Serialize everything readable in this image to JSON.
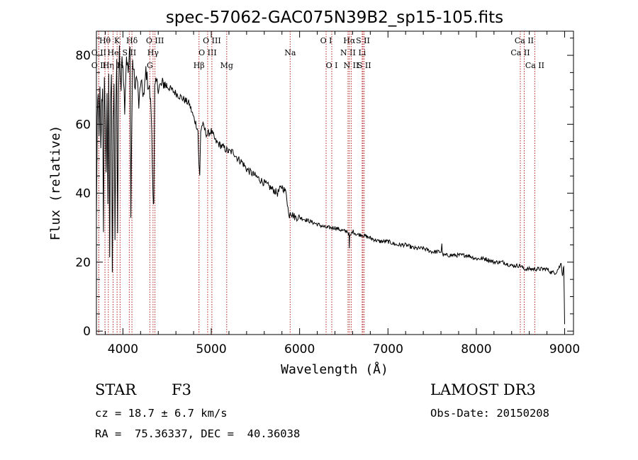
{
  "chart_data": {
    "type": "line",
    "title": "spec-57062-GAC075N39B2_sp15-105.fits",
    "xlabel": "Wavelength (Å)",
    "ylabel": "Flux (relative)",
    "xlim": [
      3700,
      9100
    ],
    "ylim": [
      -1,
      87
    ],
    "xticks": [
      4000,
      5000,
      6000,
      7000,
      8000,
      9000
    ],
    "yticks": [
      0,
      20,
      40,
      60,
      80
    ],
    "series": [
      {
        "name": "spectrum",
        "x": [
          3700,
          3710,
          3720,
          3730,
          3740,
          3750,
          3760,
          3770,
          3780,
          3790,
          3800,
          3810,
          3820,
          3830,
          3840,
          3850,
          3860,
          3870,
          3880,
          3890,
          3900,
          3910,
          3920,
          3930,
          3940,
          3950,
          3960,
          3970,
          3980,
          3990,
          4000,
          4020,
          4040,
          4060,
          4080,
          4090,
          4100,
          4110,
          4120,
          4140,
          4160,
          4180,
          4200,
          4220,
          4240,
          4260,
          4280,
          4300,
          4320,
          4340,
          4350,
          4360,
          4380,
          4400,
          4430,
          4460,
          4500,
          4550,
          4600,
          4650,
          4700,
          4750,
          4800,
          4830,
          4850,
          4860,
          4870,
          4880,
          4900,
          4950,
          5000,
          5050,
          5100,
          5150,
          5200,
          5250,
          5300,
          5350,
          5400,
          5450,
          5500,
          5550,
          5600,
          5650,
          5700,
          5750,
          5800,
          5850,
          5880,
          5895,
          5910,
          5950,
          6000,
          6100,
          6200,
          6300,
          6400,
          6500,
          6540,
          6560,
          6563,
          6566,
          6580,
          6600,
          6650,
          6700,
          6800,
          6900,
          7000,
          7100,
          7200,
          7300,
          7400,
          7500,
          7600,
          7610,
          7620,
          7700,
          7800,
          7900,
          8000,
          8100,
          8200,
          8300,
          8400,
          8500,
          8540,
          8600,
          8660,
          8700,
          8800,
          8850,
          8900,
          8950,
          8960,
          8975,
          8990,
          9000
        ],
        "values": [
          32,
          62,
          68,
          58,
          70,
          52,
          66,
          70,
          30,
          72,
          62,
          45,
          70,
          35,
          75,
          20,
          68,
          75,
          15,
          60,
          72,
          25,
          62,
          78,
          28,
          68,
          82,
          75,
          70,
          80,
          78,
          65,
          80,
          75,
          82,
          35,
          60,
          78,
          76,
          70,
          75,
          65,
          72,
          70,
          68,
          76,
          72,
          70,
          64,
          40,
          38,
          70,
          72,
          71,
          71,
          72,
          71,
          70,
          69,
          68,
          67,
          66,
          62,
          60,
          58,
          48,
          45,
          58,
          60,
          57,
          58,
          55,
          54,
          53,
          52,
          52,
          50,
          49,
          47,
          46,
          45,
          44,
          43,
          42,
          41,
          40,
          42,
          40,
          33,
          35,
          34,
          33,
          33,
          32,
          31,
          30,
          30,
          29,
          29,
          28,
          24,
          27,
          28,
          29,
          28,
          28,
          27,
          26,
          26,
          25,
          25,
          24,
          24,
          23,
          23,
          25,
          22,
          22,
          22,
          22,
          21,
          21,
          20,
          20,
          19,
          19,
          18,
          18,
          18,
          18,
          18,
          17,
          17,
          19,
          20,
          16,
          19,
          2
        ]
      }
    ],
    "lines": [
      {
        "name": "O II",
        "wave": 3727,
        "row": 3
      },
      {
        "name": "Hθ",
        "wave": 3797,
        "row": 1
      },
      {
        "name": "O II",
        "wave": 3727,
        "row": 2
      },
      {
        "name": "Hη",
        "wave": 3835,
        "row": 3
      },
      {
        "name": "He",
        "wave": 3889,
        "row": 2
      },
      {
        "name": "K",
        "wave": 3934,
        "row": 1
      },
      {
        "name": "H",
        "wave": 3968,
        "row": 3
      },
      {
        "name": "Hδ",
        "wave": 4102,
        "row": 1
      },
      {
        "name": "S II",
        "wave": 4072,
        "row": 2
      },
      {
        "name": "O III",
        "wave": 4363,
        "row": 1
      },
      {
        "name": "Hγ",
        "wave": 4341,
        "row": 2
      },
      {
        "name": "G",
        "wave": 4305,
        "row": 3
      },
      {
        "name": "Hβ",
        "wave": 4861,
        "row": 3
      },
      {
        "name": "O III",
        "wave": 4959,
        "row": 2
      },
      {
        "name": "O III",
        "wave": 5007,
        "row": 1
      },
      {
        "name": "Mg",
        "wave": 5175,
        "row": 3
      },
      {
        "name": "Na",
        "wave": 5893,
        "row": 2
      },
      {
        "name": "O I",
        "wave": 6300,
        "row": 1
      },
      {
        "name": "O I",
        "wave": 6364,
        "row": 3
      },
      {
        "name": "Hα",
        "wave": 6563,
        "row": 1
      },
      {
        "name": "N II",
        "wave": 6548,
        "row": 2
      },
      {
        "name": "N II",
        "wave": 6584,
        "row": 3
      },
      {
        "name": "S II",
        "wave": 6717,
        "row": 1
      },
      {
        "name": "Li",
        "wave": 6708,
        "row": 2
      },
      {
        "name": "S II",
        "wave": 6731,
        "row": 3
      },
      {
        "name": "Ca II",
        "wave": 8542,
        "row": 1
      },
      {
        "name": "Ca II",
        "wave": 8498,
        "row": 2
      },
      {
        "name": "Ca II",
        "wave": 8662,
        "row": 3
      }
    ]
  },
  "info": {
    "class": "STAR",
    "subclass": "F3",
    "survey": "LAMOST DR3",
    "cz": "cz = 18.7 ± 6.7 km/s",
    "obs_date": "Obs-Date: 20150208",
    "coords": "RA =  75.36337, DEC =  40.36038"
  }
}
